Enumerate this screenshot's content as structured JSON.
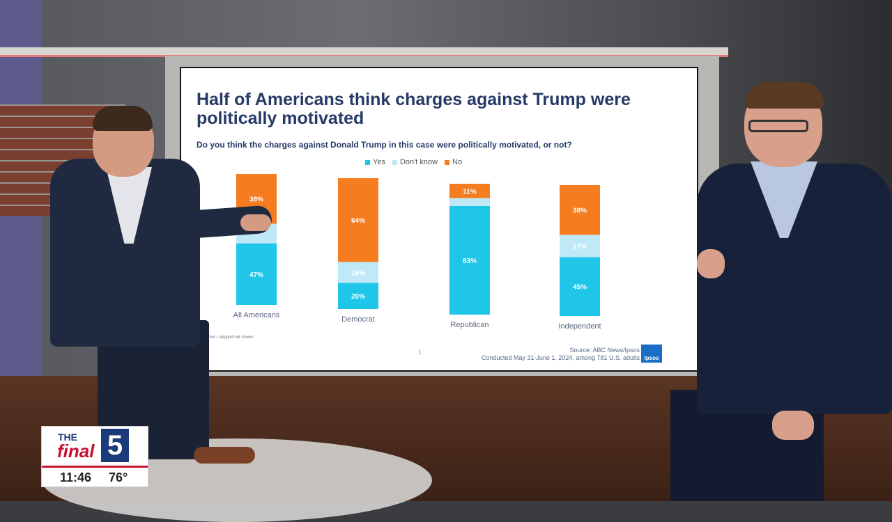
{
  "slide": {
    "title": "Half of Americans think charges against Trump were politically motivated",
    "question": "Do you think the charges against Donald Trump in this case were politically motivated, or not?",
    "source_line1": "Source: ABC News/Ipsos",
    "source_line2": "Conducted May 31-June 1, 2024, among 781 U.S. adults",
    "page_number": "1",
    "logo_text": "Ipsos",
    "footnote": "* Other / skipped not shown"
  },
  "colors": {
    "yes": "#1fc6e8",
    "dont_know": "#bfe9f6",
    "no": "#f57c1f"
  },
  "chart_data": {
    "type": "bar",
    "stacked": true,
    "categories": [
      "All Americans",
      "Democrat",
      "Republican",
      "Independent"
    ],
    "series": [
      {
        "name": "Yes",
        "values": [
          47,
          20,
          83,
          45
        ]
      },
      {
        "name": "Don't know",
        "values": [
          15,
          16,
          6,
          17
        ]
      },
      {
        "name": "No",
        "values": [
          38,
          64,
          11,
          38
        ]
      }
    ],
    "labels": [
      [
        "47%",
        "",
        "38%"
      ],
      [
        "20%",
        "16%",
        "64%"
      ],
      [
        "83%",
        "",
        "11%"
      ],
      [
        "45%",
        "17%",
        "38%"
      ]
    ],
    "legend": [
      "Yes",
      "Don't know",
      "No"
    ],
    "legend_position": "top-center",
    "ylim": [
      0,
      100
    ],
    "grid": false
  },
  "bug": {
    "the": "THE",
    "final": "final",
    "number": "5",
    "time": "11:46",
    "temp": "76°"
  }
}
